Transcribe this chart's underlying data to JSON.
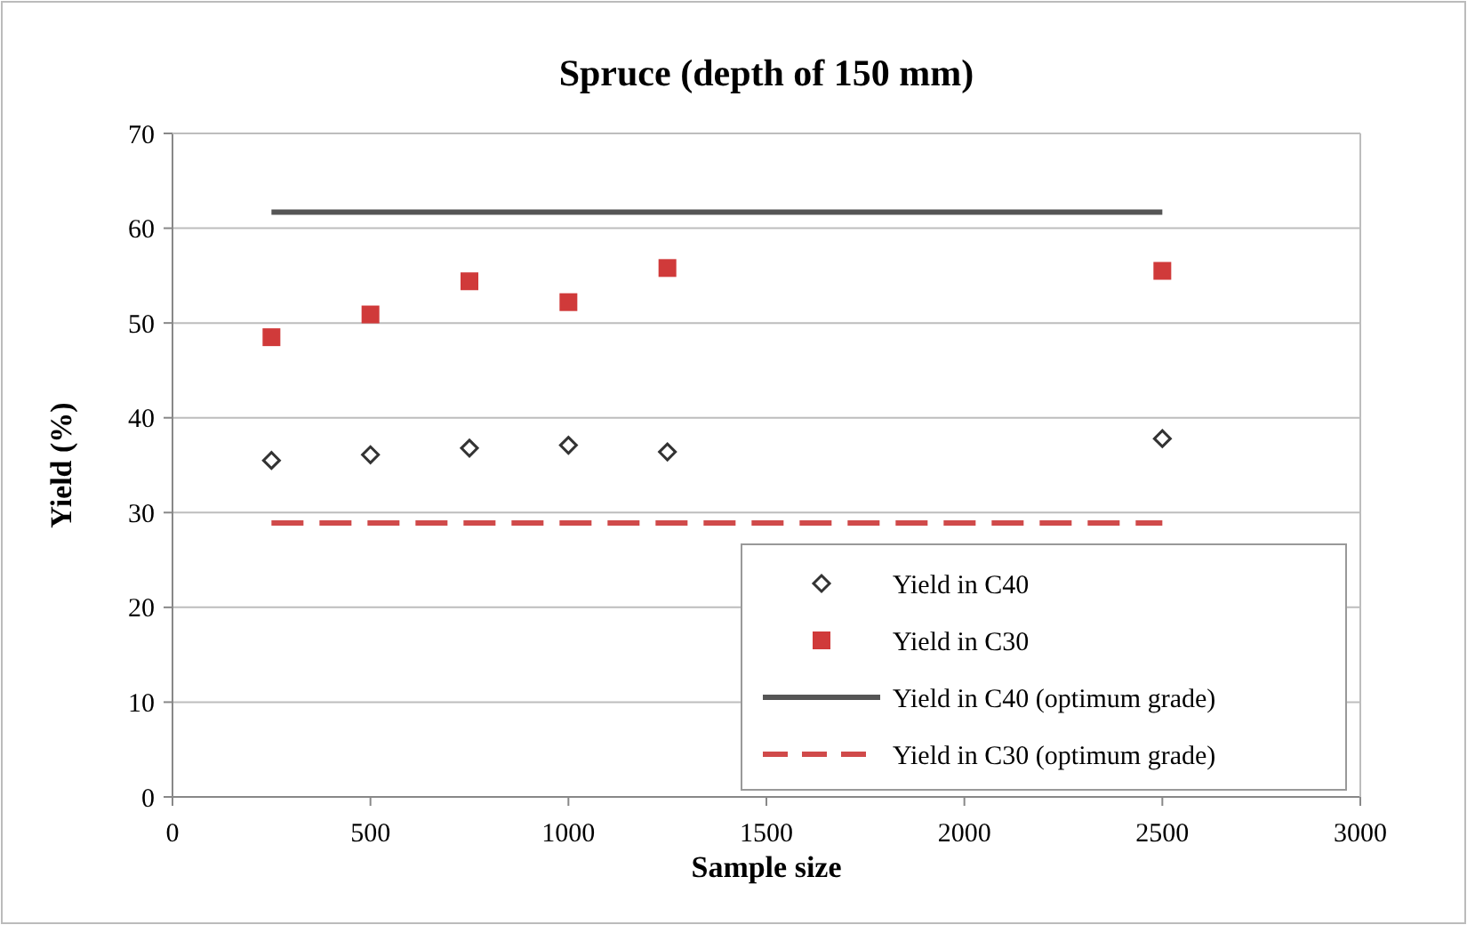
{
  "chart_data": {
    "type": "scatter",
    "title": "Spruce (depth of 150 mm)",
    "xlabel": "Sample size",
    "ylabel": "Yield (%)",
    "xlim": [
      0,
      3000
    ],
    "xticks": [
      0,
      500,
      1000,
      1500,
      2000,
      2500,
      3000
    ],
    "ylim": [
      0,
      70
    ],
    "yticks": [
      0,
      10,
      20,
      30,
      40,
      50,
      60,
      70
    ],
    "grid": "y",
    "legend": "bottom right",
    "series": [
      {
        "name": "Yield in C40",
        "marker": "diamond",
        "color": "#333333",
        "x": [
          250,
          500,
          750,
          1000,
          1250,
          2500
        ],
        "values": [
          35.5,
          36.1,
          36.8,
          37.1,
          36.4,
          37.8
        ]
      },
      {
        "name": "Yield in C30",
        "marker": "square",
        "color": "#d03a3a",
        "x": [
          250,
          500,
          750,
          1000,
          1250,
          2500
        ],
        "values": [
          48.5,
          50.9,
          54.4,
          52.2,
          55.8,
          55.5
        ]
      },
      {
        "name": "Yield in C40 (optimum grade)",
        "type": "line",
        "marker": "none",
        "line_style": "solid",
        "color": "#555555",
        "x": [
          250,
          2500
        ],
        "values": [
          61.7,
          61.7
        ]
      },
      {
        "name": "Yield in C30 (optimum grade)",
        "type": "line",
        "marker": "none",
        "line_style": "dashed",
        "color": "#d04a4a",
        "x": [
          250,
          2500
        ],
        "values": [
          28.9,
          28.9
        ]
      }
    ]
  }
}
